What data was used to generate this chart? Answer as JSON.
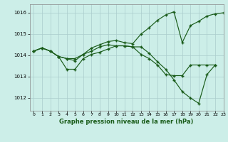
{
  "title": "Graphe pression niveau de la mer (hPa)",
  "bg_color": "#cceee8",
  "grid_color": "#aacccc",
  "line_color": "#1a5c1a",
  "xlim": [
    -0.5,
    23
  ],
  "ylim": [
    1011.4,
    1016.4
  ],
  "yticks": [
    1012,
    1013,
    1014,
    1015,
    1016
  ],
  "xticks": [
    0,
    1,
    2,
    3,
    4,
    5,
    6,
    7,
    8,
    9,
    10,
    11,
    12,
    13,
    14,
    15,
    16,
    17,
    18,
    19,
    20,
    21,
    22,
    23
  ],
  "line1_x": [
    0,
    1,
    2,
    3,
    4,
    5,
    6,
    7,
    8,
    9,
    10,
    11,
    12,
    13,
    14,
    15,
    16,
    17,
    18,
    19,
    20,
    21,
    22
  ],
  "line1_y": [
    1014.2,
    1014.35,
    1014.2,
    1013.95,
    1013.85,
    1013.85,
    1014.05,
    1014.2,
    1014.4,
    1014.5,
    1014.45,
    1014.45,
    1014.4,
    1014.05,
    1013.85,
    1013.55,
    1013.1,
    1013.05,
    1013.05,
    1013.55,
    1013.55,
    1013.55,
    1013.55
  ],
  "line2_x": [
    0,
    1,
    2,
    3,
    4,
    5,
    6,
    7,
    8,
    9,
    10,
    11,
    12,
    13,
    14,
    15,
    16,
    17,
    18,
    19,
    20,
    21,
    22
  ],
  "line2_y": [
    1014.2,
    1014.35,
    1014.2,
    1013.95,
    1013.35,
    1013.35,
    1013.85,
    1014.05,
    1014.15,
    1014.3,
    1014.45,
    1014.45,
    1014.4,
    1014.4,
    1014.1,
    1013.7,
    1013.35,
    1012.85,
    1012.3,
    1012.0,
    1011.75,
    1013.1,
    1013.55
  ],
  "line3_x": [
    0,
    1,
    2,
    3,
    4,
    5,
    6,
    7,
    8,
    9,
    10,
    11,
    12,
    13,
    14,
    15,
    16,
    17,
    18,
    19,
    20,
    21,
    22,
    23
  ],
  "line3_y": [
    1014.2,
    1014.35,
    1014.2,
    1013.95,
    1013.85,
    1013.75,
    1014.05,
    1014.35,
    1014.5,
    1014.65,
    1014.7,
    1014.6,
    1014.55,
    1015.0,
    1015.3,
    1015.65,
    1015.9,
    1016.05,
    1014.6,
    1015.4,
    1015.6,
    1015.85,
    1015.95,
    1016.0
  ]
}
